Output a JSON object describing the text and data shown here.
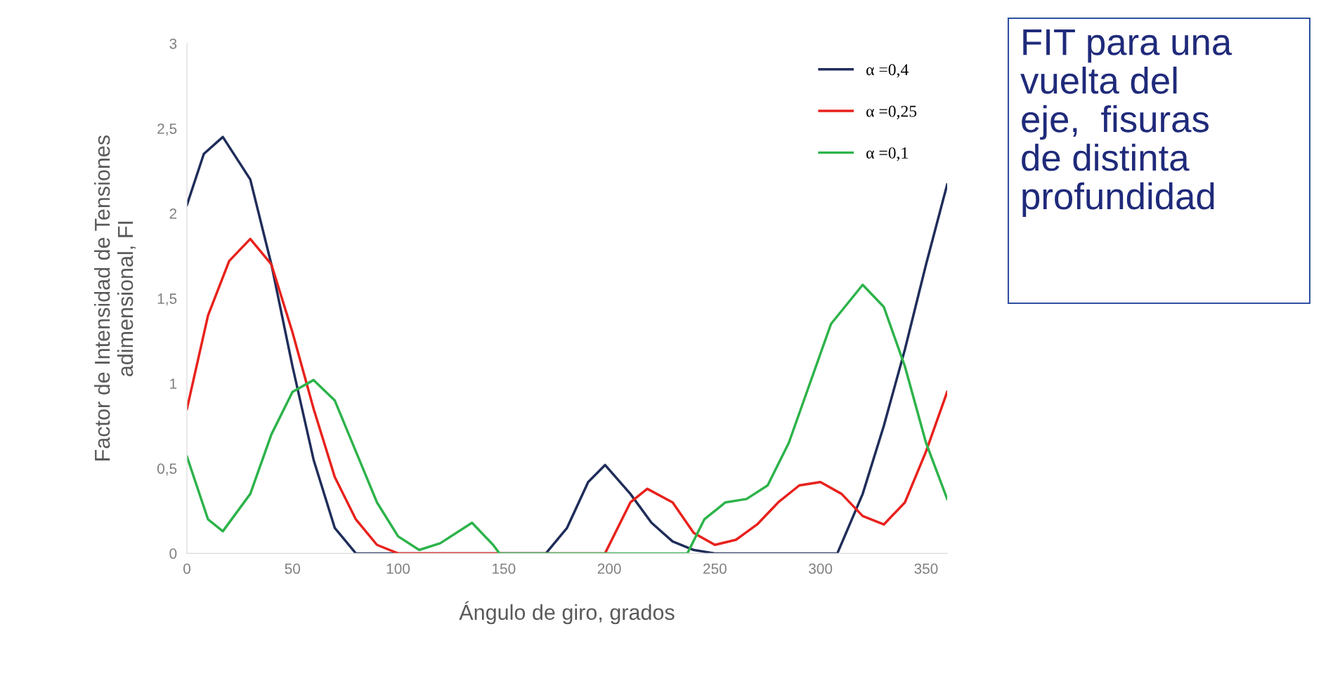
{
  "chart_data": {
    "type": "line",
    "xlabel": "Ángulo de giro, grados",
    "ylabel": "Factor de Intensidad de Tensiones\nadimensional, FI",
    "annotations": [
      "FIT para una\nvuelta del\neje,  fisuras\nde distinta\nprofundidad"
    ],
    "xlim": [
      0,
      360
    ],
    "xticks": [
      0,
      50,
      100,
      150,
      200,
      250,
      300,
      350
    ],
    "ylim": [
      0,
      3
    ],
    "yticks": [
      0,
      {
        "value": 0.5,
        "label": "0,5"
      },
      1,
      {
        "value": 1.5,
        "label": "1,5"
      },
      2,
      {
        "value": 2.5,
        "label": "2,5"
      },
      3
    ],
    "grid": false,
    "legend": "top right",
    "marker": "none",
    "line_style": "solid",
    "series": [
      {
        "name": "α =0,4",
        "color": "#1f2d5a",
        "x": [
          0,
          8,
          17,
          30,
          40,
          50,
          60,
          70,
          80,
          170,
          180,
          190,
          198,
          210,
          220,
          230,
          240,
          250,
          308,
          320,
          330,
          340,
          350,
          360
        ],
        "values": [
          2.05,
          2.35,
          2.45,
          2.2,
          1.7,
          1.1,
          0.55,
          0.15,
          0,
          0,
          0.15,
          0.42,
          0.52,
          0.35,
          0.18,
          0.07,
          0.02,
          0,
          0,
          0.35,
          0.75,
          1.2,
          1.7,
          2.17
        ]
      },
      {
        "name": "α =0,25",
        "color": "#e8211c",
        "x": [
          0,
          10,
          20,
          30,
          40,
          50,
          60,
          70,
          80,
          90,
          100,
          198,
          210,
          218,
          230,
          240,
          250,
          260,
          270,
          280,
          290,
          300,
          310,
          320,
          330,
          340,
          350,
          360
        ],
        "values": [
          0.85,
          1.4,
          1.72,
          1.85,
          1.7,
          1.3,
          0.85,
          0.45,
          0.2,
          0.05,
          0,
          0,
          0.3,
          0.38,
          0.3,
          0.12,
          0.05,
          0.08,
          0.17,
          0.3,
          0.4,
          0.42,
          0.35,
          0.22,
          0.17,
          0.3,
          0.6,
          0.95
        ]
      },
      {
        "name": "α =0,1",
        "color": "#2db34a",
        "x": [
          0,
          10,
          17,
          30,
          40,
          50,
          60,
          70,
          80,
          90,
          100,
          110,
          120,
          135,
          145,
          148,
          237,
          245,
          255,
          265,
          275,
          285,
          295,
          305,
          320,
          330,
          340,
          350,
          360
        ],
        "values": [
          0.57,
          0.2,
          0.13,
          0.35,
          0.7,
          0.95,
          1.02,
          0.9,
          0.6,
          0.3,
          0.1,
          0.02,
          0.06,
          0.18,
          0.05,
          0,
          0,
          0.2,
          0.3,
          0.32,
          0.4,
          0.65,
          1.0,
          1.35,
          1.58,
          1.45,
          1.1,
          0.65,
          0.32
        ]
      }
    ]
  }
}
